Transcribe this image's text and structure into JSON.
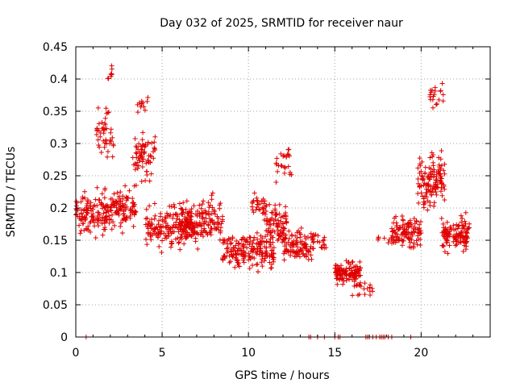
{
  "chart_data": {
    "type": "scatter",
    "title": "Day 032 of 2025, SRMTID for receiver naur",
    "xlabel": "GPS time / hours",
    "ylabel": "SRMTID / TECUs",
    "xlim": [
      0,
      24
    ],
    "ylim": [
      0,
      0.45
    ],
    "xticks": [
      0,
      5,
      10,
      15,
      20
    ],
    "yticks": [
      0,
      0.05,
      0.1,
      0.15,
      0.2,
      0.25,
      0.3,
      0.35,
      0.4,
      0.45
    ],
    "xtick_labels": [
      "0",
      "5",
      "10",
      "15",
      "20"
    ],
    "ytick_labels": [
      "0",
      "0.05",
      "0.1",
      "0.15",
      "0.2",
      "0.25",
      "0.3",
      "0.35",
      "0.4",
      "0.45"
    ],
    "grid": true,
    "marker": "plus",
    "color": "#e00000",
    "series": [
      {
        "name": "SRMTID",
        "segments": [
          {
            "x_start": 0.0,
            "x_end": 2.0,
            "y_center": 0.19,
            "y_spread": 0.05,
            "n": 130
          },
          {
            "x_start": 1.2,
            "x_end": 2.2,
            "y_center": 0.32,
            "y_spread": 0.06,
            "n": 45
          },
          {
            "x_start": 1.8,
            "x_end": 2.1,
            "y_center": 0.41,
            "y_spread": 0.02,
            "n": 8
          },
          {
            "x_start": 2.0,
            "x_end": 3.5,
            "y_center": 0.2,
            "y_spread": 0.05,
            "n": 100
          },
          {
            "x_start": 3.3,
            "x_end": 4.6,
            "y_center": 0.28,
            "y_spread": 0.06,
            "n": 70
          },
          {
            "x_start": 3.5,
            "x_end": 4.3,
            "y_center": 0.36,
            "y_spread": 0.02,
            "n": 12
          },
          {
            "x_start": 4.0,
            "x_end": 7.0,
            "y_center": 0.17,
            "y_spread": 0.05,
            "n": 180
          },
          {
            "x_start": 6.0,
            "x_end": 8.5,
            "y_center": 0.18,
            "y_spread": 0.05,
            "n": 150
          },
          {
            "x_start": 8.5,
            "x_end": 11.5,
            "y_center": 0.135,
            "y_spread": 0.04,
            "n": 190
          },
          {
            "x_start": 10.2,
            "x_end": 11.0,
            "y_center": 0.2,
            "y_spread": 0.04,
            "n": 30
          },
          {
            "x_start": 11.0,
            "x_end": 12.2,
            "y_center": 0.175,
            "y_spread": 0.05,
            "n": 80
          },
          {
            "x_start": 11.6,
            "x_end": 12.5,
            "y_center": 0.27,
            "y_spread": 0.05,
            "n": 25
          },
          {
            "x_start": 12.0,
            "x_end": 13.8,
            "y_center": 0.14,
            "y_spread": 0.04,
            "n": 110
          },
          {
            "x_start": 13.8,
            "x_end": 14.5,
            "y_center": 0.15,
            "y_spread": 0.03,
            "n": 14
          },
          {
            "x_start": 15.0,
            "x_end": 16.5,
            "y_center": 0.1,
            "y_spread": 0.025,
            "n": 120
          },
          {
            "x_start": 16.0,
            "x_end": 17.2,
            "y_center": 0.075,
            "y_spread": 0.02,
            "n": 20
          },
          {
            "x_start": 17.5,
            "x_end": 18.5,
            "y_center": 0.15,
            "y_spread": 0.02,
            "n": 10
          },
          {
            "x_start": 18.3,
            "x_end": 20.0,
            "y_center": 0.16,
            "y_spread": 0.04,
            "n": 110
          },
          {
            "x_start": 19.8,
            "x_end": 21.4,
            "y_center": 0.24,
            "y_spread": 0.07,
            "n": 130
          },
          {
            "x_start": 20.5,
            "x_end": 21.3,
            "y_center": 0.37,
            "y_spread": 0.03,
            "n": 20
          },
          {
            "x_start": 21.2,
            "x_end": 22.8,
            "y_center": 0.16,
            "y_spread": 0.04,
            "n": 120
          }
        ],
        "zero_values_x": [
          0.6,
          13.5,
          13.6,
          14.0,
          14.4,
          15.0,
          15.2,
          15.3,
          16.8,
          16.9,
          17.0,
          17.2,
          17.4,
          17.6,
          17.7,
          17.8,
          17.9,
          18.1,
          18.3,
          19.4
        ]
      }
    ]
  }
}
